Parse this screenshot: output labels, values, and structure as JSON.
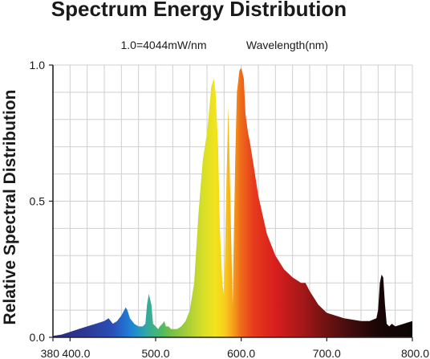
{
  "chart_data": {
    "type": "area",
    "title": "Spectrum Energy Distribution",
    "scale_note": "1.0=4044mW/nm",
    "xlabel": "Wavelength(nm)",
    "ylabel": "Relative Spectral Distribution",
    "xlim": [
      380,
      800
    ],
    "ylim": [
      0,
      1
    ],
    "grid": true,
    "x_ticks": [
      {
        "value": 380,
        "label": "380"
      },
      {
        "value": 400,
        "label": "400.0"
      },
      {
        "value": 500,
        "label": "500.0"
      },
      {
        "value": 600,
        "label": "600.0"
      },
      {
        "value": 700,
        "label": "700.0"
      },
      {
        "value": 800,
        "label": "800.0"
      }
    ],
    "y_ticks": [
      {
        "value": 0,
        "label": "0.0"
      },
      {
        "value": 0.5,
        "label": "0.5"
      },
      {
        "value": 1,
        "label": "1.0"
      }
    ],
    "fill": "spectral gradient by wavelength",
    "series": [
      {
        "x": [
          380,
          390,
          400,
          410,
          420,
          430,
          440,
          445,
          450,
          455,
          460,
          465,
          467,
          470,
          475,
          480,
          485,
          488,
          490,
          492,
          495,
          497,
          500,
          503,
          505,
          508,
          510,
          512,
          515,
          518,
          520,
          525,
          530,
          535,
          540,
          545,
          550,
          555,
          560,
          563,
          565,
          568,
          570,
          573,
          575,
          578,
          580,
          583,
          585,
          588,
          590,
          593,
          595,
          598,
          600,
          603,
          605,
          608,
          610,
          615,
          620,
          625,
          630,
          640,
          650,
          660,
          670,
          675,
          680,
          690,
          700,
          710,
          720,
          730,
          740,
          750,
          758,
          760,
          762,
          764,
          766,
          768,
          770,
          773,
          776,
          780,
          790,
          800
        ],
        "y": [
          0.005,
          0.01,
          0.02,
          0.03,
          0.04,
          0.05,
          0.06,
          0.07,
          0.05,
          0.06,
          0.08,
          0.11,
          0.1,
          0.07,
          0.05,
          0.04,
          0.04,
          0.05,
          0.12,
          0.16,
          0.12,
          0.05,
          0.04,
          0.03,
          0.04,
          0.05,
          0.06,
          0.04,
          0.04,
          0.03,
          0.03,
          0.03,
          0.04,
          0.06,
          0.1,
          0.2,
          0.45,
          0.65,
          0.75,
          0.85,
          0.92,
          0.95,
          0.9,
          0.7,
          0.4,
          0.2,
          0.15,
          0.6,
          0.85,
          0.4,
          0.12,
          0.65,
          0.9,
          0.98,
          0.99,
          0.95,
          0.82,
          0.75,
          0.72,
          0.62,
          0.52,
          0.45,
          0.38,
          0.3,
          0.25,
          0.22,
          0.2,
          0.2,
          0.17,
          0.12,
          0.09,
          0.08,
          0.07,
          0.065,
          0.06,
          0.06,
          0.07,
          0.1,
          0.2,
          0.23,
          0.22,
          0.12,
          0.05,
          0.04,
          0.05,
          0.04,
          0.05,
          0.06
        ]
      }
    ]
  }
}
